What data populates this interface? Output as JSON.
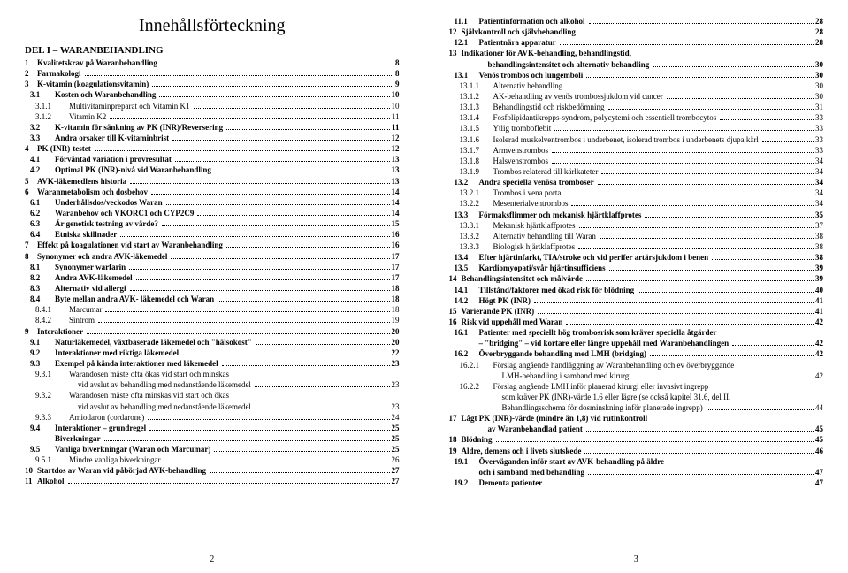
{
  "title": "Innehållsförteckning",
  "left": {
    "pagenum": "2",
    "partHead": "DEL I – WARANBEHANDLING",
    "rows": [
      {
        "i": 0,
        "b": true,
        "n": "1",
        "t": "Kvalitetskrav på Waranbehandling",
        "p": "8"
      },
      {
        "i": 0,
        "b": true,
        "n": "2",
        "t": "Farmakologi",
        "p": "8"
      },
      {
        "i": 0,
        "b": true,
        "n": "3",
        "t": "K-vitamin (koagulationsvitamin)",
        "p": "9"
      },
      {
        "i": 1,
        "b": true,
        "n": "3.1",
        "t": "Kosten och Waranbehandling",
        "p": "10"
      },
      {
        "i": 2,
        "b": false,
        "n": "3.1.1",
        "t": "Multivitaminpreparat och Vitamin K1",
        "p": "10"
      },
      {
        "i": 2,
        "b": false,
        "n": "3.1.2",
        "t": "Vitamin K2",
        "p": "11"
      },
      {
        "i": 1,
        "b": true,
        "n": "3.2",
        "t": "K-vitamin för sänkning av PK (INR)/Reversering",
        "p": "11"
      },
      {
        "i": 1,
        "b": true,
        "n": "3.3",
        "t": "Andra orsaker till K-vitaminbrist",
        "p": "12"
      },
      {
        "i": 0,
        "b": true,
        "n": "4",
        "t": "PK (INR)-testet",
        "p": "12"
      },
      {
        "i": 1,
        "b": true,
        "n": "4.1",
        "t": "Förväntad variation i provresultat",
        "p": "13"
      },
      {
        "i": 1,
        "b": true,
        "n": "4.2",
        "t": "Optimal PK (INR)-nivå vid Waranbehandling",
        "p": "13"
      },
      {
        "i": 0,
        "b": true,
        "n": "5",
        "t": "AVK-läkemedlens historia",
        "p": "13"
      },
      {
        "i": 0,
        "b": true,
        "n": "6",
        "t": "Waranmetabolism och dosbehov",
        "p": "14"
      },
      {
        "i": 1,
        "b": true,
        "n": "6.1",
        "t": "Underhållsdos/veckodos Waran",
        "p": "14"
      },
      {
        "i": 1,
        "b": true,
        "n": "6.2",
        "t": "Waranbehov och VKORC1 och CYP2C9",
        "p": "14"
      },
      {
        "i": 1,
        "b": true,
        "n": "6.3",
        "t": "Är genetisk testning av värde?",
        "p": "15"
      },
      {
        "i": 1,
        "b": true,
        "n": "6.4",
        "t": "Etniska skillnader",
        "p": "16"
      },
      {
        "i": 0,
        "b": true,
        "n": "7",
        "t": "Effekt på koagulationen vid start av Waranbehandling",
        "p": "16"
      },
      {
        "i": 0,
        "b": true,
        "n": "8",
        "t": "Synonymer och andra AVK-läkemedel",
        "p": "17"
      },
      {
        "i": 1,
        "b": true,
        "n": "8.1",
        "t": "Synonymer warfarin",
        "p": "17"
      },
      {
        "i": 1,
        "b": true,
        "n": "8.2",
        "t": "Andra AVK-läkemedel",
        "p": "17"
      },
      {
        "i": 1,
        "b": true,
        "n": "8.3",
        "t": "Alternativ vid allergi",
        "p": "18"
      },
      {
        "i": 1,
        "b": true,
        "n": "8.4",
        "t": "Byte mellan andra AVK- läkemedel och Waran",
        "p": "18"
      },
      {
        "i": 2,
        "b": false,
        "n": "8.4.1",
        "t": "Marcumar",
        "p": "18"
      },
      {
        "i": 2,
        "b": false,
        "n": "8.4.2",
        "t": "Sintrom",
        "p": "19"
      },
      {
        "i": 0,
        "b": true,
        "n": "9",
        "t": "Interaktioner",
        "p": "20"
      },
      {
        "i": 1,
        "b": true,
        "n": "9.1",
        "t": "Naturläkemedel, växtbaserade läkemedel och \"hälsokost\"",
        "p": "20"
      },
      {
        "i": 1,
        "b": true,
        "n": "9.2",
        "t": "Interaktioner med riktiga läkemedel",
        "p": "22"
      },
      {
        "i": 1,
        "b": true,
        "n": "9.3",
        "t": "Exempel på kända interaktioner med läkemedel",
        "p": "23"
      },
      {
        "i": 2,
        "b": false,
        "n": "9.3.1",
        "t": "Warandosen måste ofta ökas vid start och minskas",
        "p": null,
        "nodots": true
      },
      {
        "i": 3,
        "b": false,
        "n": "",
        "t": "vid avslut av behandling med nedanstående läkemedel",
        "p": "23",
        "cont": true
      },
      {
        "i": 2,
        "b": false,
        "n": "9.3.2",
        "t": "Warandosen måste ofta minskas vid start och ökas",
        "p": null,
        "nodots": true
      },
      {
        "i": 3,
        "b": false,
        "n": "",
        "t": "vid avslut av behandling med nedanstående läkemedel",
        "p": "23",
        "cont": true
      },
      {
        "i": 2,
        "b": false,
        "n": "9.3.3",
        "t": "Amiodaron (cordarone)",
        "p": "24"
      },
      {
        "i": 1,
        "b": true,
        "n": "9.4",
        "t": "Interaktioner – grundregel",
        "p": "25"
      },
      {
        "i": 1,
        "b": true,
        "n": "",
        "t": "Biverkningar",
        "p": "25"
      },
      {
        "i": 1,
        "b": true,
        "n": "9.5",
        "t": "Vanliga biverkningar (Waran och Marcumar)",
        "p": "25"
      },
      {
        "i": 2,
        "b": false,
        "n": "9.5.1",
        "t": "Mindre vanliga biverkningar",
        "p": "26"
      },
      {
        "i": 0,
        "b": true,
        "n": "10",
        "t": "Startdos av Waran vid påbörjad AVK-behandling",
        "p": "27"
      },
      {
        "i": 0,
        "b": true,
        "n": "11",
        "t": "Alkohol",
        "p": "27"
      }
    ]
  },
  "right": {
    "pagenum": "3",
    "rows": [
      {
        "i": 1,
        "b": true,
        "n": "11.1",
        "t": "Patientinformation och alkohol",
        "p": "28"
      },
      {
        "i": 0,
        "b": true,
        "n": "12",
        "t": "Självkontroll och självbehandling",
        "p": "28"
      },
      {
        "i": 1,
        "b": true,
        "n": "12.1",
        "t": "Patientnära apparatur",
        "p": "28"
      },
      {
        "i": 0,
        "b": true,
        "n": "13",
        "t": "Indikationer för AVK-behandling, behandlingstid,",
        "p": null,
        "nodots": true
      },
      {
        "i": 0,
        "b": true,
        "n": "",
        "t": "behandlingsintensitet och alternativ behandling",
        "p": "30",
        "cont": true
      },
      {
        "i": 1,
        "b": true,
        "n": "13.1",
        "t": "Venös trombos och lungemboli",
        "p": "30"
      },
      {
        "i": 2,
        "b": false,
        "n": "13.1.1",
        "t": "Alternativ behandling",
        "p": "30"
      },
      {
        "i": 2,
        "b": false,
        "n": "13.1.2",
        "t": "AK-behandling av venös trombossjukdom vid cancer",
        "p": "30"
      },
      {
        "i": 2,
        "b": false,
        "n": "13.1.3",
        "t": "Behandlingstid och riskbedömning",
        "p": "31"
      },
      {
        "i": 2,
        "b": false,
        "n": "13.1.4",
        "t": "Fosfolipidantikropps-syndrom, polycytemi och essentiell trombocytos",
        "p": "33"
      },
      {
        "i": 2,
        "b": false,
        "n": "13.1.5",
        "t": "Ytlig tromboflebit",
        "p": "33"
      },
      {
        "i": 2,
        "b": false,
        "n": "13.1.6",
        "t": "Isolerad muskelventrombos i underbenet, isolerad trombos i underbenets djupa kärl",
        "p": "33"
      },
      {
        "i": 2,
        "b": false,
        "n": "13.1.7",
        "t": "Armvenstrombos",
        "p": "33"
      },
      {
        "i": 2,
        "b": false,
        "n": "13.1.8",
        "t": "Halsvenstrombos",
        "p": "34"
      },
      {
        "i": 2,
        "b": false,
        "n": "13.1.9",
        "t": "Trombos relaterad till kärlkateter",
        "p": "34"
      },
      {
        "i": 1,
        "b": true,
        "n": "13.2",
        "t": "Andra speciella venösa tromboser",
        "p": "34"
      },
      {
        "i": 2,
        "b": false,
        "n": "13.2.1",
        "t": "Trombos i vena porta",
        "p": "34"
      },
      {
        "i": 2,
        "b": false,
        "n": "13.2.2",
        "t": "Mesenterialventrombos",
        "p": "34"
      },
      {
        "i": 1,
        "b": true,
        "n": "13.3",
        "t": "Förmaksflimmer och mekanisk hjärtklaffprotes",
        "p": "35"
      },
      {
        "i": 2,
        "b": false,
        "n": "13.3.1",
        "t": "Mekanisk hjärtklaffprotes",
        "p": "37"
      },
      {
        "i": 2,
        "b": false,
        "n": "13.3.2",
        "t": "Alternativ behandling till Waran",
        "p": "38"
      },
      {
        "i": 2,
        "b": false,
        "n": "13.3.3",
        "t": "Biologisk hjärtklaffprotes",
        "p": "38"
      },
      {
        "i": 1,
        "b": true,
        "n": "13.4",
        "t": "Efter hjärtinfarkt, TIA/stroke och vid perifer artärsjukdom i benen",
        "p": "38"
      },
      {
        "i": 1,
        "b": true,
        "n": "13.5",
        "t": "Kardiomyopati/svår hjärtinsufficiens",
        "p": "39"
      },
      {
        "i": 0,
        "b": true,
        "n": "14",
        "t": "Behandlingsintensitet och målvärde",
        "p": "39"
      },
      {
        "i": 1,
        "b": true,
        "n": "14.1",
        "t": "Tillstånd/faktorer med ökad risk för blödning",
        "p": "40"
      },
      {
        "i": 1,
        "b": true,
        "n": "14.2",
        "t": "Högt PK (INR)",
        "p": "41"
      },
      {
        "i": 0,
        "b": true,
        "n": "15",
        "t": "Varierande PK (INR)",
        "p": "41"
      },
      {
        "i": 0,
        "b": true,
        "n": "16",
        "t": "Risk vid uppehåll med Waran",
        "p": "42"
      },
      {
        "i": 1,
        "b": true,
        "n": "16.1",
        "t": "Patienter med speciellt hög trombosrisk som kräver speciella åtgärder",
        "p": null,
        "nodots": true
      },
      {
        "i": 1,
        "b": true,
        "n": "",
        "t": "– \"bridging\" – vid kortare eller längre uppehåll med Waranbehandlingen",
        "p": "42",
        "cont": true
      },
      {
        "i": 1,
        "b": true,
        "n": "16.2",
        "t": "Överbryggande behandling med LMH (bridging)",
        "p": "42"
      },
      {
        "i": 2,
        "b": false,
        "n": "16.2.1",
        "t": "Förslag angående handläggning av Waranbehandling och ev överbryggande",
        "p": null,
        "nodots": true
      },
      {
        "i": 3,
        "b": false,
        "n": "",
        "t": "LMH-behandling i samband med kirurgi",
        "p": "42",
        "cont": true
      },
      {
        "i": 2,
        "b": false,
        "n": "16.2.2",
        "t": "Förslag angående LMH inför planerad kirurgi eller invasivt ingrepp",
        "p": null,
        "nodots": true
      },
      {
        "i": 3,
        "b": false,
        "n": "",
        "t": "som kräver PK (INR)-värde 1.6 eller lägre (se också kapitel 31.6, del II,",
        "p": null,
        "nodots": true,
        "cont": true
      },
      {
        "i": 3,
        "b": false,
        "n": "",
        "t": "Behandlingsschema för dosminskning inför planerade ingrepp)",
        "p": "44",
        "cont": true
      },
      {
        "i": 0,
        "b": true,
        "n": "17",
        "t": "Lågt PK (INR)-värde (mindre än 1,8) vid rutinkontroll",
        "p": null,
        "nodots": true
      },
      {
        "i": 0,
        "b": true,
        "n": "",
        "t": "av Waranbehandlad patient",
        "p": "45",
        "cont": true
      },
      {
        "i": 0,
        "b": true,
        "n": "18",
        "t": "Blödning",
        "p": "45"
      },
      {
        "i": 0,
        "b": true,
        "n": "19",
        "t": "Äldre, demens och i livets slutskede",
        "p": "46"
      },
      {
        "i": 1,
        "b": true,
        "n": "19.1",
        "t": "Överväganden inför start av AVK-behandling på äldre",
        "p": null,
        "nodots": true
      },
      {
        "i": 1,
        "b": true,
        "n": "",
        "t": "och i samband med behandling",
        "p": "47",
        "cont": true
      },
      {
        "i": 1,
        "b": true,
        "n": "19.2",
        "t": "Dementa patienter",
        "p": "47"
      }
    ]
  }
}
